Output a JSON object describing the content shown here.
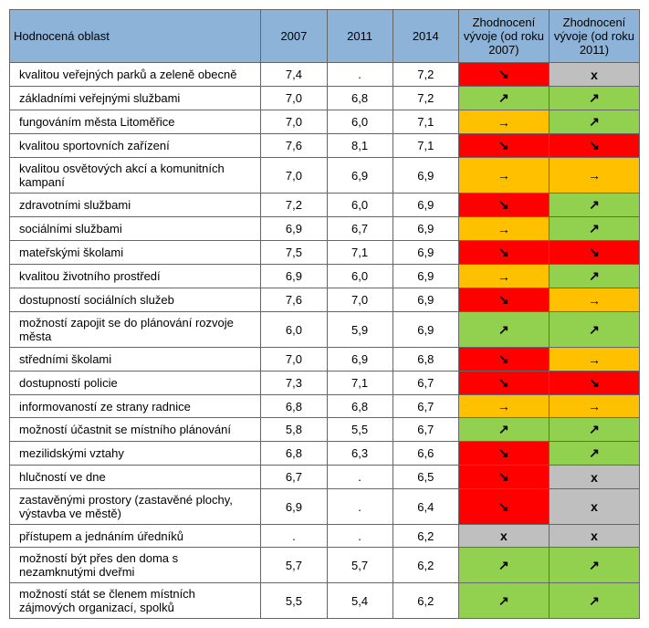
{
  "table": {
    "header": {
      "label": "Hodnocená oblast",
      "c2007": "2007",
      "c2011": "2011",
      "c2014": "2014",
      "trend2007": "Zhodnocení vývoje (od roku 2007)",
      "trend2011": "Zhodnocení vývoje (od roku 2011)"
    },
    "colors": {
      "header_bg": "#8db4d8",
      "green": "#92d050",
      "orange": "#ffc000",
      "red": "#ff0000",
      "gray": "#bfbfbf",
      "border": "#666"
    },
    "font": {
      "family": "Arial, sans-serif",
      "size_body": 13,
      "size_arrow": 14
    },
    "arrows": {
      "up": "↗",
      "right": "→",
      "down": "↘",
      "none": "x"
    },
    "rows": [
      {
        "label": "kvalitou veřejných parků a zeleně obecně",
        "v2007": "7,4",
        "v2011": ".",
        "v2014": "7,2",
        "t07": "down",
        "c07": "red",
        "t11": "none",
        "c11": "gray"
      },
      {
        "label": "základními veřejnými službami",
        "v2007": "7,0",
        "v2011": "6,8",
        "v2014": "7,2",
        "t07": "up",
        "c07": "green",
        "t11": "up",
        "c11": "green"
      },
      {
        "label": "fungováním města Litoměřice",
        "v2007": "7,0",
        "v2011": "6,0",
        "v2014": "7,1",
        "t07": "right",
        "c07": "orange",
        "t11": "up",
        "c11": "green"
      },
      {
        "label": "kvalitou sportovních zařízení",
        "v2007": "7,6",
        "v2011": "8,1",
        "v2014": "7,1",
        "t07": "down",
        "c07": "red",
        "t11": "down",
        "c11": "red"
      },
      {
        "label": "kvalitou osvětových akcí a komunitních kampaní",
        "v2007": "7,0",
        "v2011": "6,9",
        "v2014": "6,9",
        "t07": "right",
        "c07": "orange",
        "t11": "right",
        "c11": "orange"
      },
      {
        "label": "zdravotními službami",
        "v2007": "7,2",
        "v2011": "6,0",
        "v2014": "6,9",
        "t07": "down",
        "c07": "red",
        "t11": "up",
        "c11": "green"
      },
      {
        "label": "sociálními službami",
        "v2007": "6,9",
        "v2011": "6,7",
        "v2014": "6,9",
        "t07": "right",
        "c07": "orange",
        "t11": "up",
        "c11": "green"
      },
      {
        "label": "mateřskými školami",
        "v2007": "7,5",
        "v2011": "7,1",
        "v2014": "6,9",
        "t07": "down",
        "c07": "red",
        "t11": "down",
        "c11": "red"
      },
      {
        "label": "kvalitou životního prostředí",
        "v2007": "6,9",
        "v2011": "6,0",
        "v2014": "6,9",
        "t07": "right",
        "c07": "orange",
        "t11": "up",
        "c11": "green"
      },
      {
        "label": "dostupností sociálních služeb",
        "v2007": "7,6",
        "v2011": "7,0",
        "v2014": "6,9",
        "t07": "down",
        "c07": "red",
        "t11": "right",
        "c11": "orange"
      },
      {
        "label": "možností zapojit se do plánování rozvoje města",
        "v2007": "6,0",
        "v2011": "5,9",
        "v2014": "6,9",
        "t07": "up",
        "c07": "green",
        "t11": "up",
        "c11": "green"
      },
      {
        "label": "středními školami",
        "v2007": "7,0",
        "v2011": "6,9",
        "v2014": "6,8",
        "t07": "down",
        "c07": "red",
        "t11": "right",
        "c11": "orange"
      },
      {
        "label": "dostupností policie",
        "v2007": "7,3",
        "v2011": "7,1",
        "v2014": "6,7",
        "t07": "down",
        "c07": "red",
        "t11": "down",
        "c11": "red"
      },
      {
        "label": "informovaností ze strany radnice",
        "v2007": "6,8",
        "v2011": "6,8",
        "v2014": "6,7",
        "t07": "right",
        "c07": "orange",
        "t11": "right",
        "c11": "orange"
      },
      {
        "label": "možností účastnit se místního plánování",
        "v2007": "5,8",
        "v2011": "5,5",
        "v2014": "6,7",
        "t07": "up",
        "c07": "green",
        "t11": "up",
        "c11": "green"
      },
      {
        "label": "mezilidskými vztahy",
        "v2007": "6,8",
        "v2011": "6,3",
        "v2014": "6,6",
        "t07": "down",
        "c07": "red",
        "t11": "up",
        "c11": "green"
      },
      {
        "label": "hlučností ve dne",
        "v2007": "6,7",
        "v2011": ".",
        "v2014": "6,5",
        "t07": "down",
        "c07": "red",
        "t11": "none",
        "c11": "gray"
      },
      {
        "label": "zastavěnými prostory (zastavěné plochy, výstavba ve městě)",
        "v2007": "6,9",
        "v2011": ".",
        "v2014": "6,4",
        "t07": "down",
        "c07": "red",
        "t11": "none",
        "c11": "gray"
      },
      {
        "label": "přístupem a jednáním úředníků",
        "v2007": ".",
        "v2011": ".",
        "v2014": "6,2",
        "t07": "none",
        "c07": "gray",
        "t11": "none",
        "c11": "gray"
      },
      {
        "label": "možností být přes den doma s nezamknutými dveřmi",
        "v2007": "5,7",
        "v2011": "5,7",
        "v2014": "6,2",
        "t07": "up",
        "c07": "green",
        "t11": "up",
        "c11": "green"
      },
      {
        "label": "možností stát se členem místních zájmových organizací, spolků",
        "v2007": "5,5",
        "v2011": "5,4",
        "v2014": "6,2",
        "t07": "up",
        "c07": "green",
        "t11": "up",
        "c11": "green"
      }
    ]
  }
}
